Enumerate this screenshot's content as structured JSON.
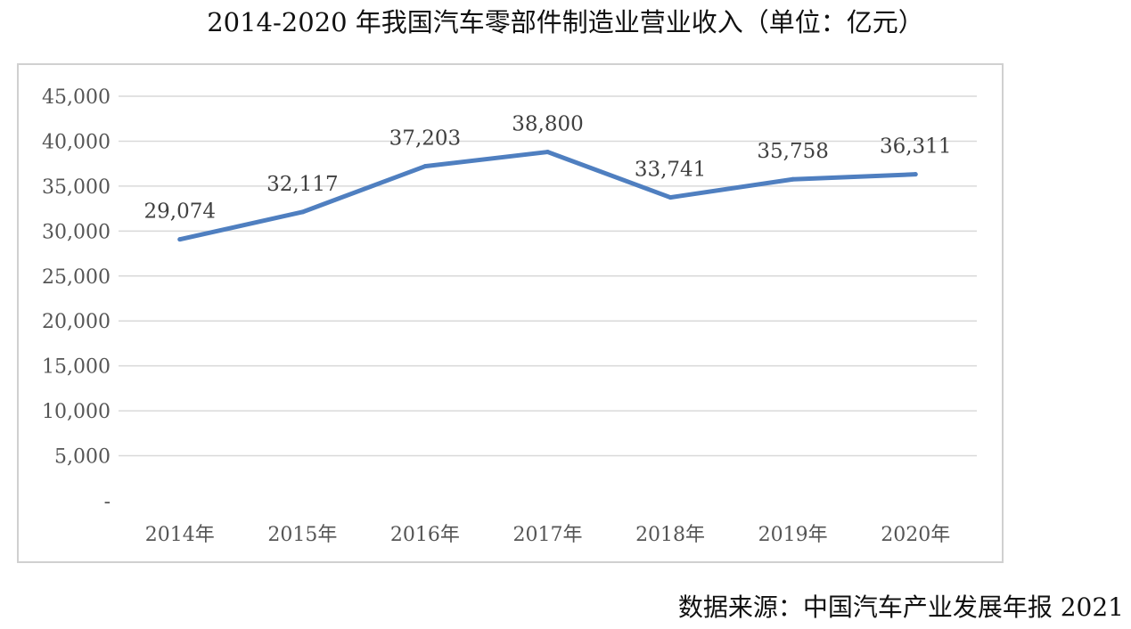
{
  "title": "2014-2020 年我国汽车零部件制造业营业收入（单位：亿元）",
  "source": "数据来源：中国汽车产业发展年报 2021",
  "chart_data": {
    "type": "line",
    "title": "2014-2020 年我国汽车零部件制造业营业收入（单位：亿元）",
    "xlabel": "",
    "ylabel": "",
    "categories": [
      "2014年",
      "2015年",
      "2016年",
      "2017年",
      "2018年",
      "2019年",
      "2020年"
    ],
    "series": [
      {
        "values": [
          29074,
          32117,
          37203,
          38800,
          33741,
          35758,
          36311
        ],
        "labels": [
          "29,074",
          "32,117",
          "37,203",
          "38,800",
          "33,741",
          "35,758",
          "36,311"
        ],
        "color": "#4f7fc0"
      }
    ],
    "ylim": [
      0,
      45000
    ],
    "yticks": [
      0,
      5000,
      10000,
      15000,
      20000,
      25000,
      30000,
      35000,
      40000,
      45000
    ],
    "ytick_labels": [
      "-",
      "5,000",
      "10,000",
      "15,000",
      "20,000",
      "25,000",
      "30,000",
      "35,000",
      "40,000",
      "45,000"
    ],
    "grid": true,
    "gridline_color": "#d9d9d9",
    "legend": "none"
  }
}
